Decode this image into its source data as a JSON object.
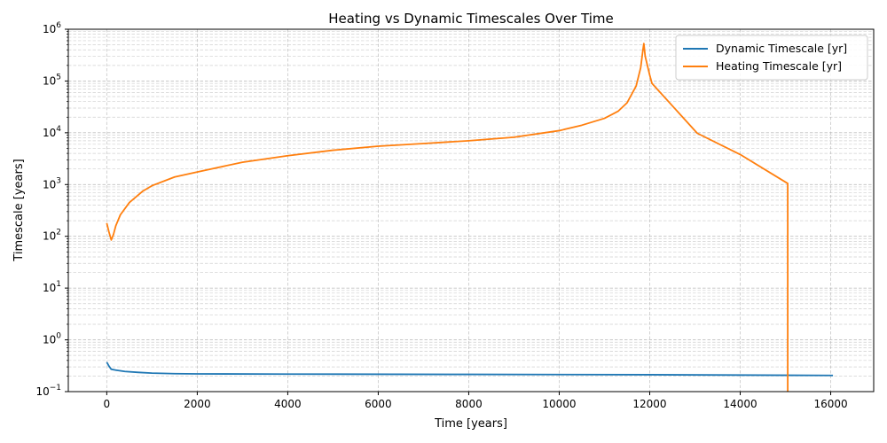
{
  "chart_data": {
    "type": "line",
    "title": "Heating vs Dynamic Timescales Over Time",
    "xlabel": "Time [years]",
    "ylabel": "Timescale [years]",
    "xlim": [
      -850,
      16950
    ],
    "ylim": [
      0.1,
      1000000
    ],
    "yscale": "log",
    "grid": true,
    "legend_position": "top-right",
    "x_ticks": [
      0,
      2000,
      4000,
      6000,
      8000,
      10000,
      12000,
      14000,
      16000
    ],
    "x_tick_labels": [
      "0",
      "2000",
      "4000",
      "6000",
      "8000",
      "10000",
      "12000",
      "14000",
      "16000"
    ],
    "y_ticks": [
      0.1,
      1,
      10,
      100,
      1000,
      10000,
      100000,
      1000000
    ],
    "y_tick_labels": [
      {
        "base": "10",
        "exp": "−1"
      },
      {
        "base": "10",
        "exp": "0"
      },
      {
        "base": "10",
        "exp": "1"
      },
      {
        "base": "10",
        "exp": "2"
      },
      {
        "base": "10",
        "exp": "3"
      },
      {
        "base": "10",
        "exp": "4"
      },
      {
        "base": "10",
        "exp": "5"
      },
      {
        "base": "10",
        "exp": "6"
      }
    ],
    "series": [
      {
        "name": "Dynamic Timescale [yr]",
        "color": "#1f77b4",
        "x": [
          0,
          50,
          100,
          200,
          400,
          700,
          1000,
          1500,
          2000,
          4000,
          8000,
          12000,
          16050
        ],
        "y": [
          0.37,
          0.31,
          0.27,
          0.26,
          0.245,
          0.235,
          0.228,
          0.222,
          0.22,
          0.218,
          0.215,
          0.212,
          0.205
        ]
      },
      {
        "name": "Heating Timescale [yr]",
        "color": "#ff7f0e",
        "x": [
          0,
          50,
          100,
          150,
          200,
          300,
          500,
          800,
          1000,
          1500,
          2000,
          3000,
          4000,
          5000,
          6000,
          7000,
          8000,
          9000,
          10000,
          10500,
          11000,
          11300,
          11500,
          11700,
          11800,
          11850,
          11870,
          11900,
          12000,
          12050,
          13050,
          14000,
          15050,
          15050
        ],
        "y": [
          180,
          120,
          85,
          110,
          160,
          260,
          450,
          750,
          950,
          1400,
          1750,
          2700,
          3600,
          4600,
          5500,
          6200,
          7000,
          8200,
          11000,
          14000,
          19000,
          26000,
          38000,
          80000,
          180000,
          400000,
          530000,
          300000,
          130000,
          90000,
          9800,
          3800,
          1050,
          0.1
        ]
      }
    ]
  }
}
